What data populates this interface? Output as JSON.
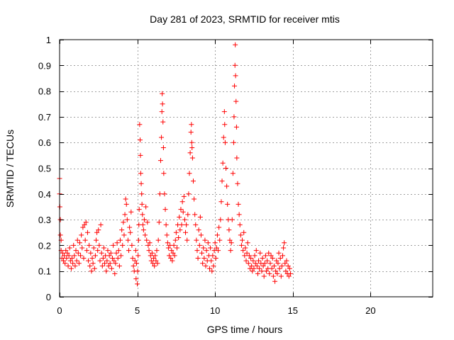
{
  "chart_data": {
    "type": "scatter",
    "title": "Day 281 of 2023, SRMTID for receiver mtis",
    "xlabel": "GPS time / hours",
    "ylabel": "SRMTID / TECUs",
    "xlim": [
      0,
      24
    ],
    "ylim": [
      0,
      1
    ],
    "xticks": [
      0,
      5,
      10,
      15,
      20
    ],
    "xtick_labels": [
      "0",
      "5",
      "10",
      "15",
      "20"
    ],
    "yticks": [
      0,
      0.1,
      0.2,
      0.3,
      0.4,
      0.5,
      0.6,
      0.7,
      0.8,
      0.9,
      1
    ],
    "ytick_labels": [
      "0",
      "0.1",
      "0.2",
      "0.3",
      "0.4",
      "0.5",
      "0.6",
      "0.7",
      "0.8",
      "0.9",
      "1"
    ],
    "grid": true,
    "marker": "+",
    "marker_color": "#ff0000",
    "series": [
      {
        "name": "SRMTID",
        "points": [
          [
            0.0,
            0.46
          ],
          [
            0.0,
            0.4
          ],
          [
            0.02,
            0.35
          ],
          [
            0.05,
            0.3
          ],
          [
            0.05,
            0.24
          ],
          [
            0.1,
            0.22
          ],
          [
            0.1,
            0.18
          ],
          [
            0.15,
            0.15
          ],
          [
            0.2,
            0.17
          ],
          [
            0.25,
            0.14
          ],
          [
            0.3,
            0.16
          ],
          [
            0.35,
            0.13
          ],
          [
            0.4,
            0.18
          ],
          [
            0.45,
            0.15
          ],
          [
            0.5,
            0.17
          ],
          [
            0.55,
            0.12
          ],
          [
            0.6,
            0.16
          ],
          [
            0.65,
            0.19
          ],
          [
            0.7,
            0.14
          ],
          [
            0.75,
            0.11
          ],
          [
            0.8,
            0.15
          ],
          [
            0.85,
            0.13
          ],
          [
            0.9,
            0.2
          ],
          [
            0.95,
            0.16
          ],
          [
            1.0,
            0.12
          ],
          [
            1.05,
            0.18
          ],
          [
            1.1,
            0.14
          ],
          [
            1.15,
            0.22
          ],
          [
            1.2,
            0.17
          ],
          [
            1.25,
            0.13
          ],
          [
            1.3,
            0.21
          ],
          [
            1.35,
            0.16
          ],
          [
            1.4,
            0.24
          ],
          [
            1.45,
            0.19
          ],
          [
            1.5,
            0.27
          ],
          [
            1.55,
            0.15
          ],
          [
            1.6,
            0.28
          ],
          [
            1.65,
            0.22
          ],
          [
            1.7,
            0.29
          ],
          [
            1.75,
            0.18
          ],
          [
            1.8,
            0.25
          ],
          [
            1.85,
            0.14
          ],
          [
            1.9,
            0.2
          ],
          [
            1.95,
            0.12
          ],
          [
            2.0,
            0.17
          ],
          [
            2.05,
            0.1
          ],
          [
            2.1,
            0.15
          ],
          [
            2.15,
            0.13
          ],
          [
            2.2,
            0.19
          ],
          [
            2.25,
            0.11
          ],
          [
            2.3,
            0.16
          ],
          [
            2.35,
            0.22
          ],
          [
            2.4,
            0.25
          ],
          [
            2.45,
            0.18
          ],
          [
            2.5,
            0.26
          ],
          [
            2.55,
            0.2
          ],
          [
            2.6,
            0.14
          ],
          [
            2.65,
            0.28
          ],
          [
            2.7,
            0.17
          ],
          [
            2.75,
            0.12
          ],
          [
            2.8,
            0.15
          ],
          [
            2.85,
            0.19
          ],
          [
            2.9,
            0.13
          ],
          [
            2.95,
            0.16
          ],
          [
            3.0,
            0.1
          ],
          [
            3.05,
            0.14
          ],
          [
            3.1,
            0.18
          ],
          [
            3.15,
            0.12
          ],
          [
            3.2,
            0.16
          ],
          [
            3.25,
            0.13
          ],
          [
            3.3,
            0.17
          ],
          [
            3.35,
            0.11
          ],
          [
            3.4,
            0.15
          ],
          [
            3.45,
            0.2
          ],
          [
            3.5,
            0.14
          ],
          [
            3.55,
            0.09
          ],
          [
            3.6,
            0.13
          ],
          [
            3.65,
            0.17
          ],
          [
            3.7,
            0.21
          ],
          [
            3.75,
            0.15
          ],
          [
            3.8,
            0.18
          ],
          [
            3.85,
            0.12
          ],
          [
            3.9,
            0.22
          ],
          [
            3.95,
            0.16
          ],
          [
            4.0,
            0.26
          ],
          [
            4.05,
            0.2
          ],
          [
            4.1,
            0.29
          ],
          [
            4.15,
            0.24
          ],
          [
            4.2,
            0.32
          ],
          [
            4.25,
            0.38
          ],
          [
            4.3,
            0.36
          ],
          [
            4.35,
            0.3
          ],
          [
            4.4,
            0.22
          ],
          [
            4.45,
            0.18
          ],
          [
            4.5,
            0.27
          ],
          [
            4.55,
            0.25
          ],
          [
            4.6,
            0.33
          ],
          [
            4.65,
            0.2
          ],
          [
            4.7,
            0.15
          ],
          [
            4.75,
            0.12
          ],
          [
            4.8,
            0.1
          ],
          [
            4.85,
            0.14
          ],
          [
            4.9,
            0.18
          ],
          [
            4.92,
            0.07
          ],
          [
            4.95,
            0.13
          ],
          [
            5.0,
            0.05
          ],
          [
            5.02,
            0.1
          ],
          [
            5.05,
            0.16
          ],
          [
            5.08,
            0.22
          ],
          [
            5.1,
            0.28
          ],
          [
            5.12,
            0.34
          ],
          [
            5.15,
            0.67
          ],
          [
            5.18,
            0.61
          ],
          [
            5.2,
            0.55
          ],
          [
            5.22,
            0.48
          ],
          [
            5.25,
            0.44
          ],
          [
            5.28,
            0.4
          ],
          [
            5.3,
            0.36
          ],
          [
            5.33,
            0.32
          ],
          [
            5.36,
            0.28
          ],
          [
            5.4,
            0.26
          ],
          [
            5.45,
            0.3
          ],
          [
            5.5,
            0.24
          ],
          [
            5.55,
            0.35
          ],
          [
            5.6,
            0.22
          ],
          [
            5.65,
            0.29
          ],
          [
            5.7,
            0.2
          ],
          [
            5.75,
            0.18
          ],
          [
            5.8,
            0.21
          ],
          [
            5.85,
            0.16
          ],
          [
            5.9,
            0.14
          ],
          [
            5.95,
            0.17
          ],
          [
            6.0,
            0.13
          ],
          [
            6.05,
            0.15
          ],
          [
            6.1,
            0.12
          ],
          [
            6.15,
            0.16
          ],
          [
            6.2,
            0.14
          ],
          [
            6.25,
            0.18
          ],
          [
            6.3,
            0.13
          ],
          [
            6.35,
            0.22
          ],
          [
            6.4,
            0.29
          ],
          [
            6.45,
            0.4
          ],
          [
            6.5,
            0.53
          ],
          [
            6.55,
            0.62
          ],
          [
            6.58,
            0.72
          ],
          [
            6.6,
            0.79
          ],
          [
            6.62,
            0.75
          ],
          [
            6.65,
            0.68
          ],
          [
            6.68,
            0.58
          ],
          [
            6.7,
            0.48
          ],
          [
            6.75,
            0.4
          ],
          [
            6.8,
            0.34
          ],
          [
            6.85,
            0.28
          ],
          [
            6.9,
            0.24
          ],
          [
            6.95,
            0.21
          ],
          [
            7.0,
            0.19
          ],
          [
            7.05,
            0.16
          ],
          [
            7.1,
            0.2
          ],
          [
            7.15,
            0.15
          ],
          [
            7.2,
            0.18
          ],
          [
            7.25,
            0.14
          ],
          [
            7.3,
            0.17
          ],
          [
            7.35,
            0.2
          ],
          [
            7.4,
            0.16
          ],
          [
            7.45,
            0.22
          ],
          [
            7.5,
            0.25
          ],
          [
            7.55,
            0.19
          ],
          [
            7.6,
            0.28
          ],
          [
            7.65,
            0.23
          ],
          [
            7.7,
            0.31
          ],
          [
            7.75,
            0.26
          ],
          [
            7.8,
            0.34
          ],
          [
            7.85,
            0.28
          ],
          [
            7.9,
            0.37
          ],
          [
            7.95,
            0.33
          ],
          [
            8.0,
            0.39
          ],
          [
            8.05,
            0.3
          ],
          [
            8.1,
            0.25
          ],
          [
            8.15,
            0.28
          ],
          [
            8.2,
            0.22
          ],
          [
            8.25,
            0.32
          ],
          [
            8.3,
            0.4
          ],
          [
            8.35,
            0.48
          ],
          [
            8.4,
            0.56
          ],
          [
            8.45,
            0.64
          ],
          [
            8.48,
            0.67
          ],
          [
            8.5,
            0.6
          ],
          [
            8.52,
            0.58
          ],
          [
            8.55,
            0.54
          ],
          [
            8.6,
            0.45
          ],
          [
            8.65,
            0.38
          ],
          [
            8.7,
            0.32
          ],
          [
            8.75,
            0.28
          ],
          [
            8.8,
            0.22
          ],
          [
            8.85,
            0.18
          ],
          [
            8.9,
            0.15
          ],
          [
            8.95,
            0.26
          ],
          [
            9.0,
            0.2
          ],
          [
            9.05,
            0.31
          ],
          [
            9.1,
            0.24
          ],
          [
            9.15,
            0.17
          ],
          [
            9.2,
            0.13
          ],
          [
            9.25,
            0.19
          ],
          [
            9.3,
            0.15
          ],
          [
            9.35,
            0.22
          ],
          [
            9.4,
            0.12
          ],
          [
            9.45,
            0.18
          ],
          [
            9.5,
            0.14
          ],
          [
            9.55,
            0.21
          ],
          [
            9.6,
            0.16
          ],
          [
            9.65,
            0.11
          ],
          [
            9.7,
            0.19
          ],
          [
            9.75,
            0.14
          ],
          [
            9.8,
            0.1
          ],
          [
            9.85,
            0.16
          ],
          [
            9.9,
            0.12
          ],
          [
            9.95,
            0.18
          ],
          [
            10.0,
            0.21
          ],
          [
            10.05,
            0.15
          ],
          [
            10.1,
            0.19
          ],
          [
            10.15,
            0.24
          ],
          [
            10.2,
            0.18
          ],
          [
            10.25,
            0.27
          ],
          [
            10.3,
            0.22
          ],
          [
            10.35,
            0.3
          ],
          [
            10.4,
            0.37
          ],
          [
            10.45,
            0.45
          ],
          [
            10.5,
            0.52
          ],
          [
            10.55,
            0.62
          ],
          [
            10.6,
            0.72
          ],
          [
            10.62,
            0.67
          ],
          [
            10.65,
            0.6
          ],
          [
            10.7,
            0.5
          ],
          [
            10.75,
            0.43
          ],
          [
            10.8,
            0.36
          ],
          [
            10.85,
            0.3
          ],
          [
            10.9,
            0.26
          ],
          [
            10.95,
            0.22
          ],
          [
            11.0,
            0.18
          ],
          [
            11.05,
            0.21
          ],
          [
            11.1,
            0.3
          ],
          [
            11.15,
            0.48
          ],
          [
            11.2,
            0.6
          ],
          [
            11.22,
            0.7
          ],
          [
            11.25,
            0.82
          ],
          [
            11.28,
            0.9
          ],
          [
            11.3,
            0.98
          ],
          [
            11.32,
            0.86
          ],
          [
            11.35,
            0.76
          ],
          [
            11.38,
            0.66
          ],
          [
            11.4,
            0.54
          ],
          [
            11.45,
            0.44
          ],
          [
            11.5,
            0.36
          ],
          [
            11.55,
            0.32
          ],
          [
            11.6,
            0.28
          ],
          [
            11.65,
            0.24
          ],
          [
            11.7,
            0.2
          ],
          [
            11.75,
            0.22
          ],
          [
            11.8,
            0.18
          ],
          [
            11.85,
            0.25
          ],
          [
            11.9,
            0.16
          ],
          [
            11.95,
            0.19
          ],
          [
            12.0,
            0.14
          ],
          [
            12.05,
            0.17
          ],
          [
            12.1,
            0.21
          ],
          [
            12.15,
            0.13
          ],
          [
            12.2,
            0.16
          ],
          [
            12.25,
            0.11
          ],
          [
            12.3,
            0.15
          ],
          [
            12.35,
            0.12
          ],
          [
            12.4,
            0.1
          ],
          [
            12.45,
            0.14
          ],
          [
            12.5,
            0.11
          ],
          [
            12.55,
            0.16
          ],
          [
            12.6,
            0.13
          ],
          [
            12.65,
            0.18
          ],
          [
            12.7,
            0.12
          ],
          [
            12.75,
            0.09
          ],
          [
            12.8,
            0.14
          ],
          [
            12.85,
            0.11
          ],
          [
            12.9,
            0.17
          ],
          [
            12.95,
            0.13
          ],
          [
            13.0,
            0.1
          ],
          [
            13.05,
            0.15
          ],
          [
            13.1,
            0.12
          ],
          [
            13.15,
            0.08
          ],
          [
            13.2,
            0.13
          ],
          [
            13.25,
            0.16
          ],
          [
            13.3,
            0.1
          ],
          [
            13.35,
            0.14
          ],
          [
            13.4,
            0.11
          ],
          [
            13.45,
            0.17
          ],
          [
            13.5,
            0.09
          ],
          [
            13.55,
            0.13
          ],
          [
            13.6,
            0.16
          ],
          [
            13.65,
            0.11
          ],
          [
            13.7,
            0.15
          ],
          [
            13.75,
            0.08
          ],
          [
            13.8,
            0.12
          ],
          [
            13.85,
            0.06
          ],
          [
            13.9,
            0.1
          ],
          [
            13.95,
            0.14
          ],
          [
            14.0,
            0.09
          ],
          [
            14.05,
            0.13
          ],
          [
            14.1,
            0.17
          ],
          [
            14.15,
            0.11
          ],
          [
            14.2,
            0.15
          ],
          [
            14.25,
            0.08
          ],
          [
            14.3,
            0.12
          ],
          [
            14.35,
            0.16
          ],
          [
            14.4,
            0.19
          ],
          [
            14.45,
            0.21
          ],
          [
            14.5,
            0.13
          ],
          [
            14.55,
            0.1
          ],
          [
            14.6,
            0.14
          ],
          [
            14.65,
            0.09
          ],
          [
            14.7,
            0.12
          ],
          [
            14.75,
            0.08
          ],
          [
            14.8,
            0.11
          ],
          [
            14.85,
            0.09
          ]
        ]
      }
    ]
  }
}
